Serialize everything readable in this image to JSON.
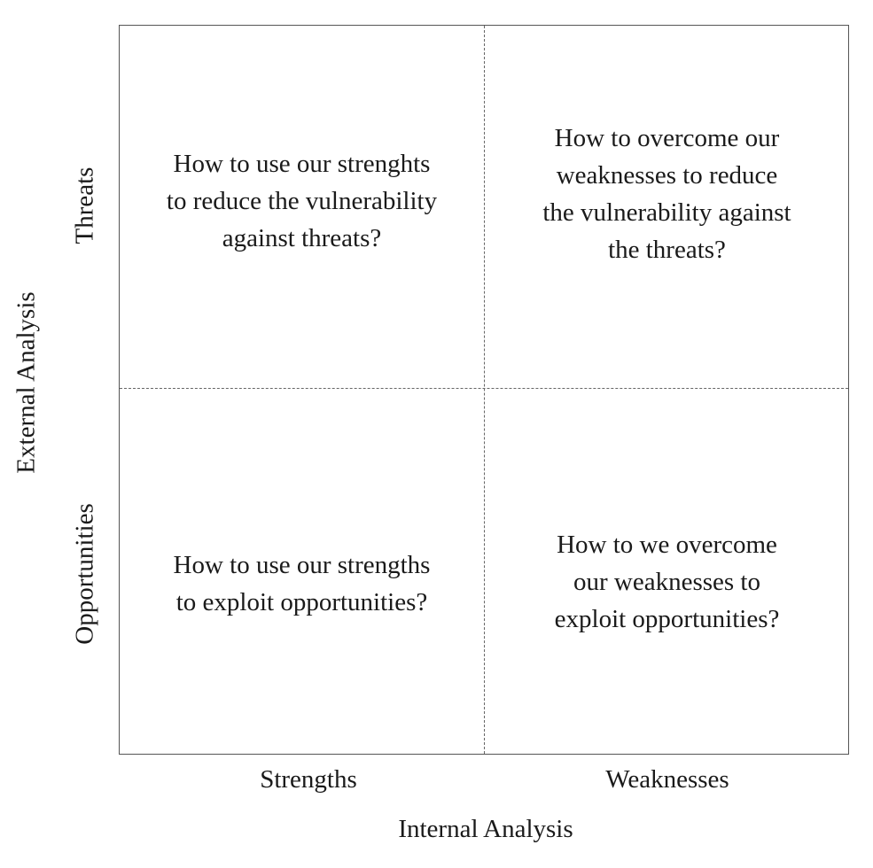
{
  "axes": {
    "x_title": "Internal Analysis",
    "y_title": "External Analysis",
    "x_labels": [
      "Strengths",
      "Weaknesses"
    ],
    "y_labels": [
      "Threats",
      "Opportunities"
    ]
  },
  "quadrants": {
    "strengths_threats": "How to use our strenghts\nto reduce the vulnerability\nagainst threats?",
    "weaknesses_threats": "How to overcome our\nweaknesses to reduce\nthe vulnerability against\nthe threats?",
    "strengths_opportunities": "How to use our strengths\nto exploit opportunities?",
    "weaknesses_opportunities": "How to we overcome\nour weaknesses to\nexploit opportunities?"
  }
}
